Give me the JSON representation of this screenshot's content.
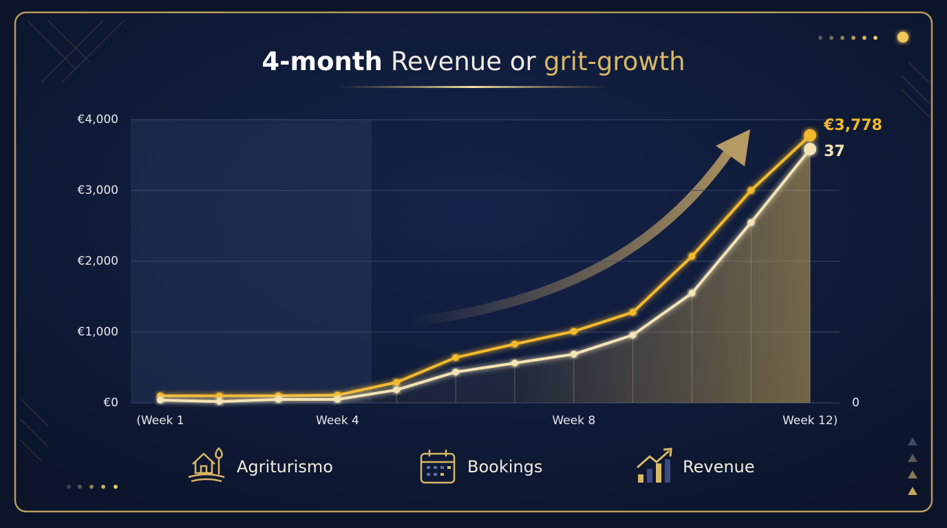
{
  "chart_data": {
    "type": "line",
    "title": [
      "4-month",
      "Revenue or",
      "grit-growth"
    ],
    "subject": "Agriturismo",
    "categories": [
      "(Week 1",
      null,
      null,
      "Week 4",
      null,
      null,
      null,
      "Week 8",
      null,
      null,
      null,
      "Week 12)"
    ],
    "series": [
      {
        "name": "Revenue",
        "color": "#f2b92e",
        "values": [
          100,
          100,
          100,
          110,
          290,
          640,
          830,
          1010,
          1280,
          2070,
          3000,
          3778
        ],
        "value_labels": [
          null,
          null,
          null,
          null,
          null,
          null,
          null,
          null,
          null,
          null,
          null,
          "€3,778"
        ]
      },
      {
        "name": "Bookings",
        "color": "#f3e3b5",
        "axis": "y2",
        "values": [
          0.4,
          0.2,
          0.5,
          0.5,
          1.9,
          4.5,
          5.8,
          7.1,
          9.9,
          16,
          26.3,
          37
        ]
      }
    ],
    "ylim": [
      0,
      4000
    ],
    "yticks": [
      {
        "value": 0,
        "label": "€0"
      },
      {
        "value": 1000,
        "label": "€1,000"
      },
      {
        "value": 2000,
        "label": "€2,000"
      },
      {
        "value": 3000,
        "label": "€3,000"
      },
      {
        "value": 4000,
        "label": "€4,000"
      }
    ],
    "y2lim": [
      0,
      41.3
    ],
    "y2ticks": [
      0
    ],
    "grid": true
  }
}
